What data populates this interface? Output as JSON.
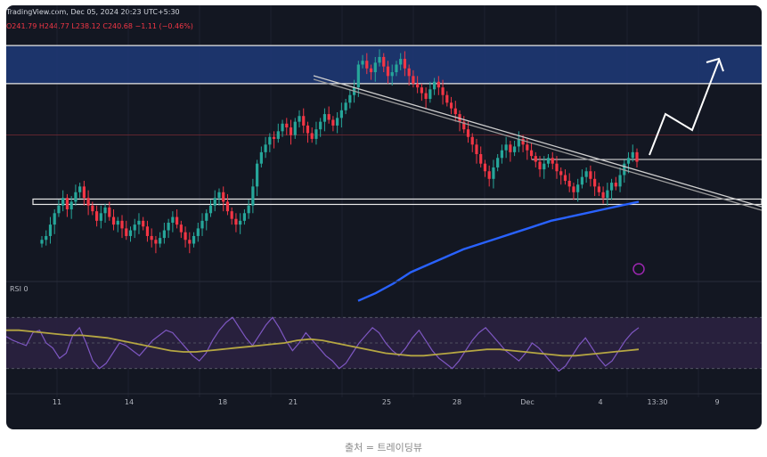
{
  "header": {
    "source": "TradingView.com, Dec 05, 2024 20:23 UTC+5:30",
    "ohlc_text": "O241.79  H244.77  L238.12  C240.68  −1.11 (−0.46%)"
  },
  "rsi": {
    "title": "RSI 0"
  },
  "caption": "출처 = 트레이딩뷰",
  "colors": {
    "background": "#131722",
    "bull": "#26a69a",
    "bear": "#f23645",
    "ema": "#2962ff",
    "rsi_line": "#7e57c2",
    "rsi_ma": "#b5a642",
    "resistance_zone": "#1e3a78"
  },
  "chart_data": {
    "type": "candlestick",
    "title": "",
    "x_ticks": [
      "11",
      "14",
      "18",
      "21",
      "25",
      "28",
      "Dec",
      "4",
      "13:30",
      "9"
    ],
    "price_series": {
      "name": "",
      "close": [
        150,
        152,
        158,
        164,
        168,
        172,
        166,
        170,
        175,
        178,
        172,
        168,
        165,
        160,
        164,
        167,
        162,
        158,
        160,
        156,
        152,
        155,
        158,
        160,
        157,
        152,
        150,
        148,
        151,
        155,
        159,
        162,
        158,
        154,
        150,
        148,
        152,
        156,
        160,
        164,
        168,
        172,
        175,
        170,
        165,
        161,
        158,
        160,
        164,
        168,
        178,
        190,
        196,
        200,
        204,
        203,
        207,
        211,
        209,
        205,
        212,
        215,
        210,
        206,
        203,
        208,
        212,
        216,
        213,
        210,
        214,
        218,
        222,
        226,
        230,
        242,
        244,
        240,
        238,
        243,
        246,
        241,
        236,
        238,
        242,
        245,
        240,
        236,
        232,
        230,
        227,
        224,
        229,
        233,
        230,
        226,
        222,
        219,
        216,
        212,
        208,
        204,
        200,
        195,
        190,
        186,
        182,
        188,
        193,
        197,
        200,
        196,
        199,
        203,
        200,
        197,
        194,
        191,
        187,
        190,
        193,
        190,
        186,
        184,
        181,
        178,
        175,
        179,
        183,
        186,
        182,
        178,
        175,
        172,
        176,
        180,
        178,
        184,
        190,
        193,
        196,
        191
      ],
      "note_y_range": [
        130,
        260
      ]
    },
    "ema_200": {
      "name": "",
      "values": [
        118,
        122,
        127,
        133,
        137,
        141,
        145,
        148,
        151,
        154,
        157,
        160,
        162,
        164,
        166,
        168,
        170
      ]
    },
    "resistance_zone": [
      232,
      252
    ],
    "support_line": 170,
    "horizontal_level": 232,
    "mid_level": 205,
    "descending_trendline": {
      "from_index": 50,
      "to_index": 200,
      "start": 252,
      "end": 180
    },
    "projection_arrow": true,
    "rsi_series": {
      "name": "",
      "values": [
        55,
        52,
        50,
        48,
        58,
        60,
        50,
        46,
        38,
        42,
        56,
        62,
        50,
        36,
        30,
        34,
        42,
        50,
        48,
        44,
        40,
        46,
        52,
        56,
        60,
        58,
        52,
        46,
        40,
        36,
        42,
        52,
        60,
        66,
        70,
        62,
        54,
        48,
        56,
        64,
        70,
        62,
        52,
        44,
        50,
        58,
        52,
        46,
        40,
        36,
        30,
        34,
        42,
        50,
        56,
        62,
        58,
        50,
        44,
        40,
        46,
        54,
        60,
        52,
        44,
        38,
        34,
        30,
        36,
        44,
        52,
        58,
        62,
        56,
        50,
        44,
        40,
        36,
        42,
        50,
        46,
        40,
        34,
        28,
        32,
        40,
        48,
        54,
        46,
        38,
        32,
        36,
        44,
        52,
        58,
        62
      ]
    },
    "rsi_ma_series": {
      "name": "",
      "values": [
        60,
        60,
        59,
        58,
        57,
        56,
        56,
        55,
        54,
        52,
        50,
        48,
        46,
        44,
        43,
        43,
        44,
        45,
        46,
        47,
        48,
        49,
        50,
        52,
        53,
        52,
        50,
        48,
        46,
        44,
        42,
        41,
        40,
        40,
        41,
        42,
        43,
        44,
        45,
        45,
        44,
        43,
        42,
        41,
        40,
        40,
        41,
        42,
        43,
        44,
        45
      ]
    }
  }
}
